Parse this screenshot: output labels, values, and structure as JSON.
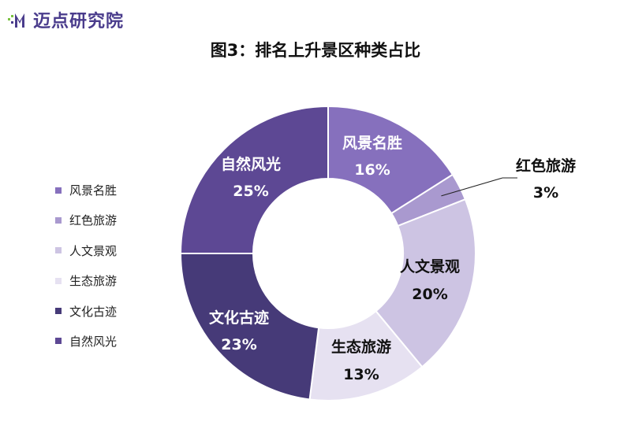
{
  "logo": {
    "text": "迈点研究院"
  },
  "chart_data": {
    "type": "pie",
    "title": "图3：排名上升景区种类占比",
    "donut": true,
    "slices": [
      {
        "label": "风景名胜",
        "value": 16,
        "value_label": "16%",
        "color": "#8670bd",
        "text_color": "#ffffff"
      },
      {
        "label": "红色旅游",
        "value": 3,
        "value_label": "3%",
        "color": "#a999cf",
        "text_color": "#111111"
      },
      {
        "label": "人文景观",
        "value": 20,
        "value_label": "20%",
        "color": "#cdc4e3",
        "text_color": "#111111"
      },
      {
        "label": "生态旅游",
        "value": 13,
        "value_label": "13%",
        "color": "#e6e1f1",
        "text_color": "#111111"
      },
      {
        "label": "文化古迹",
        "value": 23,
        "value_label": "23%",
        "color": "#463a78",
        "text_color": "#ffffff"
      },
      {
        "label": "自然风光",
        "value": 25,
        "value_label": "25%",
        "color": "#5d4894",
        "text_color": "#ffffff"
      }
    ],
    "legend_position": "left"
  }
}
